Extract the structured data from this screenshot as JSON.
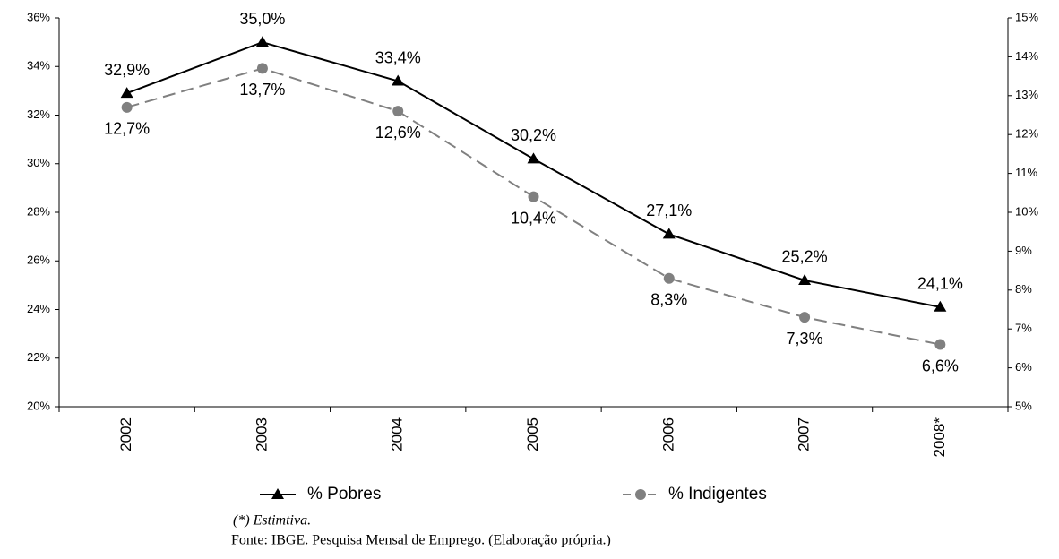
{
  "chart_data": {
    "type": "line",
    "categories": [
      "2002",
      "2003",
      "2004",
      "2005",
      "2006",
      "2007",
      "2008*"
    ],
    "series": [
      {
        "name": "% Pobres",
        "color": "#000000",
        "marker": "triangle",
        "values": [
          32.9,
          35.0,
          33.4,
          30.2,
          27.1,
          25.2,
          24.1
        ],
        "value_labels": [
          "32,9%",
          "35,0%",
          "33,4%",
          "30,2%",
          "27,1%",
          "25,2%",
          "24,1%"
        ]
      },
      {
        "name": "% Indigentes",
        "color": "#808080",
        "marker": "circle",
        "dashed": true,
        "axis": "y2",
        "values": [
          12.7,
          13.7,
          12.6,
          10.4,
          8.3,
          7.3,
          6.6
        ],
        "value_labels": [
          "12,7%",
          "13,7%",
          "12,6%",
          "10,4%",
          "8,3%",
          "7,3%",
          "6,6%"
        ]
      }
    ],
    "ylim": [
      20,
      36
    ],
    "yticks": [
      {
        "value": 20,
        "label": "20%"
      },
      {
        "value": 22,
        "label": "22%"
      },
      {
        "value": 24,
        "label": "24%"
      },
      {
        "value": 26,
        "label": "26%"
      },
      {
        "value": 28,
        "label": "28%"
      },
      {
        "value": 30,
        "label": "30%"
      },
      {
        "value": 32,
        "label": "32%"
      },
      {
        "value": 34,
        "label": "34%"
      },
      {
        "value": 36,
        "label": "36%"
      }
    ],
    "y2lim": [
      5,
      15
    ],
    "y2ticks": [
      {
        "value": 5,
        "label": "5%"
      },
      {
        "value": 6,
        "label": "6%"
      },
      {
        "value": 7,
        "label": "7%"
      },
      {
        "value": 8,
        "label": "8%"
      },
      {
        "value": 9,
        "label": "9%"
      },
      {
        "value": 10,
        "label": "10%"
      },
      {
        "value": 11,
        "label": "11%"
      },
      {
        "value": 12,
        "label": "12%"
      },
      {
        "value": 13,
        "label": "13%"
      },
      {
        "value": 14,
        "label": "14%"
      },
      {
        "value": 15,
        "label": "15%"
      }
    ],
    "notes": [
      "(*) Estimtiva.",
      "Fonte: IBGE. Pesquisa Mensal de Emprego. (Elaboração própria.)"
    ]
  }
}
